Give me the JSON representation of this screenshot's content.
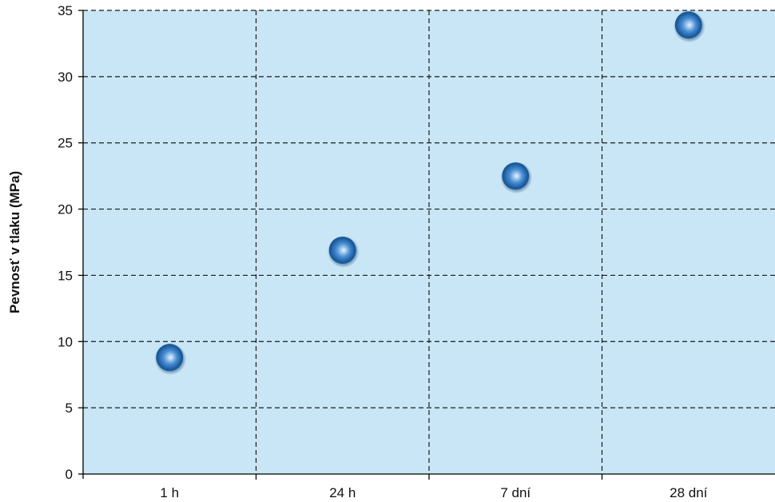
{
  "chart_data": {
    "type": "scatter",
    "title": "",
    "xlabel": "",
    "ylabel": "Pevnosť v tlaku (MPa)",
    "categories": [
      "1 h",
      "24 h",
      "7 dní",
      "28 dní"
    ],
    "ylim": [
      0,
      35
    ],
    "yticks": [
      0,
      5,
      10,
      15,
      20,
      25,
      30,
      35
    ],
    "grid": true,
    "grid_style": "dashed",
    "legend": "none",
    "series": [
      {
        "points": [
          {
            "x": "1 h",
            "y": 8.8
          },
          {
            "x": "24 h",
            "y": 16.9
          },
          {
            "x": "7 dní",
            "y": 22.5
          },
          {
            "x": "28 dní",
            "y": 33.9
          }
        ]
      }
    ]
  },
  "colors": {
    "plot_background": "#c9e6f6",
    "grid": "#1a1a1a",
    "axis": "#000000",
    "marker_dark": "#1a5a9c",
    "marker_mid": "#4a90d4",
    "marker_light": "#e8f2ff"
  }
}
